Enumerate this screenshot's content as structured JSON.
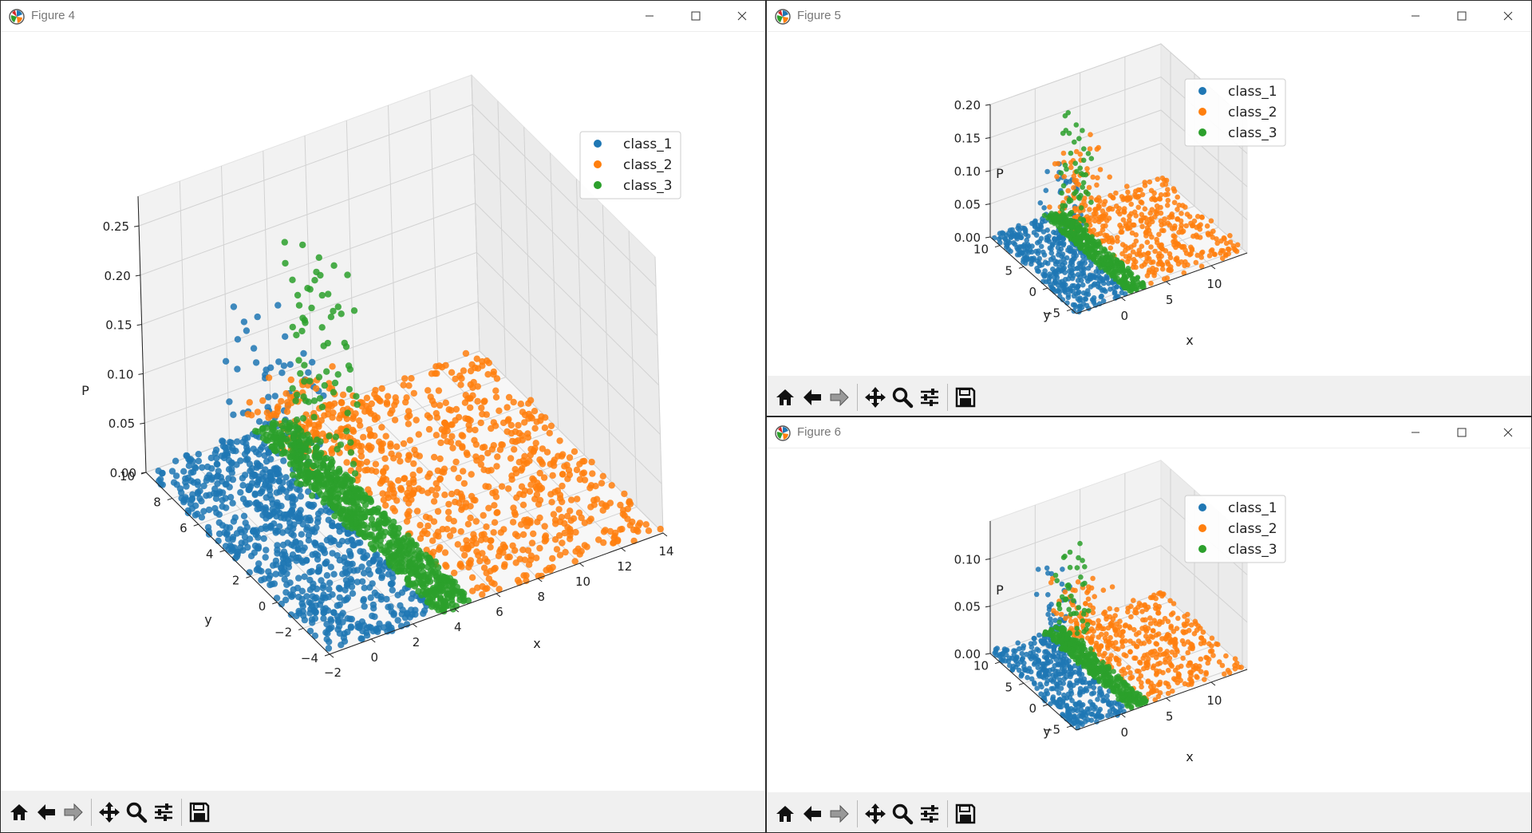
{
  "windows": [
    {
      "title": "Figure 4",
      "controls": {
        "minimize": "minimize-icon",
        "maximize": "maximize-icon",
        "close": "close-icon"
      },
      "toolbar": [
        "home-icon",
        "back-arrow-icon",
        "forward-arrow-icon",
        "pan-icon",
        "zoom-icon",
        "configure-subplots-icon",
        "save-icon"
      ]
    },
    {
      "title": "Figure 5",
      "controls": {
        "minimize": "minimize-icon",
        "maximize": "maximize-icon",
        "close": "close-icon"
      },
      "toolbar": [
        "home-icon",
        "back-arrow-icon",
        "forward-arrow-icon",
        "pan-icon",
        "zoom-icon",
        "configure-subplots-icon",
        "save-icon"
      ]
    },
    {
      "title": "Figure 6",
      "controls": {
        "minimize": "minimize-icon",
        "maximize": "maximize-icon",
        "close": "close-icon"
      },
      "toolbar": [
        "home-icon",
        "back-arrow-icon",
        "forward-arrow-icon",
        "pan-icon",
        "zoom-icon",
        "configure-subplots-icon",
        "save-icon"
      ]
    }
  ],
  "chart_data": [
    {
      "type": "scatter",
      "projection": "3d",
      "xlabel": "x",
      "ylabel": "y",
      "zlabel": "P",
      "xlim": [
        -2,
        14
      ],
      "ylim": [
        -4,
        10
      ],
      "zlim": [
        0,
        0.28
      ],
      "xticks": [
        -2,
        0,
        2,
        4,
        6,
        8,
        10,
        12,
        14
      ],
      "yticks": [
        -4,
        -2,
        0,
        2,
        4,
        6,
        8,
        10
      ],
      "zticks": [
        0.0,
        0.05,
        0.1,
        0.15,
        0.2,
        0.25
      ],
      "xtick_labels": [
        "−2",
        "0",
        "2",
        "4",
        "6",
        "8",
        "10",
        "12",
        "14"
      ],
      "ytick_labels": [
        "−4",
        "−2",
        "0",
        "2",
        "4",
        "6",
        "8",
        "10"
      ],
      "ztick_labels": [
        "0.00",
        "0.05",
        "0.10",
        "0.15",
        "0.20",
        "0.25"
      ],
      "legend_position": "upper right",
      "grid": true,
      "series": [
        {
          "name": "class_1",
          "color": "#1f77b4",
          "x_range": [
            -2,
            3.2
          ],
          "y_range": [
            -4,
            10
          ],
          "peak_xy": [
            1.2,
            5
          ],
          "peak_p": 0.19
        },
        {
          "name": "class_2",
          "color": "#ff7f0e",
          "x_range": [
            4.9,
            14
          ],
          "y_range": [
            -4,
            10
          ],
          "peak_xy": [
            5.5,
            9
          ],
          "peak_p": 0.03
        },
        {
          "name": "class_3",
          "color": "#2ca02c",
          "x_range": [
            3.2,
            4.9
          ],
          "y_range": [
            -4,
            10
          ],
          "peak_xy": [
            3.2,
            4.5
          ],
          "peak_p": 0.26
        }
      ]
    },
    {
      "type": "scatter",
      "projection": "3d",
      "xlabel": "x",
      "ylabel": "y",
      "zlabel": "P",
      "xlim": [
        -5,
        14
      ],
      "ylim": [
        -6,
        12
      ],
      "zlim": [
        0,
        0.2
      ],
      "xticks": [
        0,
        5,
        10
      ],
      "yticks": [
        -5,
        0,
        5,
        10
      ],
      "zticks": [
        0.0,
        0.05,
        0.1,
        0.15,
        0.2
      ],
      "xtick_labels": [
        "0",
        "5",
        "10"
      ],
      "ytick_labels": [
        "−5",
        "0",
        "5",
        "10"
      ],
      "ztick_labels": [
        "0.00",
        "0.05",
        "0.10",
        "0.15",
        "0.20"
      ],
      "legend_position": "upper right",
      "grid": true,
      "series": [
        {
          "name": "class_1",
          "color": "#1f77b4",
          "x_range": [
            -5,
            1
          ],
          "y_range": [
            -6,
            12
          ],
          "peak_xy": [
            -1,
            5
          ],
          "peak_p": 0.13
        },
        {
          "name": "class_2",
          "color": "#ff7f0e",
          "x_range": [
            3,
            14
          ],
          "y_range": [
            -6,
            12
          ],
          "peak_xy": [
            4,
            10
          ],
          "peak_p": 0.1
        },
        {
          "name": "class_3",
          "color": "#2ca02c",
          "x_range": [
            1,
            3
          ],
          "y_range": [
            -6,
            12
          ],
          "peak_xy": [
            1.5,
            6
          ],
          "peak_p": 0.18
        }
      ]
    },
    {
      "type": "scatter",
      "projection": "3d",
      "xlabel": "x",
      "ylabel": "y",
      "zlabel": "P",
      "xlim": [
        -5,
        14
      ],
      "ylim": [
        -6,
        12
      ],
      "zlim": [
        0,
        0.14
      ],
      "xticks": [
        0,
        5,
        10
      ],
      "yticks": [
        -5,
        0,
        5,
        10
      ],
      "zticks": [
        0.0,
        0.05,
        0.1
      ],
      "xtick_labels": [
        "0",
        "5",
        "10"
      ],
      "ytick_labels": [
        "−5",
        "0",
        "5",
        "10"
      ],
      "ztick_labels": [
        "0.00",
        "0.05",
        "0.10"
      ],
      "legend_position": "upper right",
      "grid": true,
      "series": [
        {
          "name": "class_1",
          "color": "#1f77b4",
          "x_range": [
            -5,
            1
          ],
          "y_range": [
            -6,
            12
          ],
          "peak_xy": [
            -1,
            6
          ],
          "peak_p": 0.1
        },
        {
          "name": "class_2",
          "color": "#ff7f0e",
          "x_range": [
            3,
            14
          ],
          "y_range": [
            -6,
            12
          ],
          "peak_xy": [
            4,
            9
          ],
          "peak_p": 0.06
        },
        {
          "name": "class_3",
          "color": "#2ca02c",
          "x_range": [
            1,
            3
          ],
          "y_range": [
            -6,
            12
          ],
          "peak_xy": [
            1.5,
            7
          ],
          "peak_p": 0.12
        }
      ]
    }
  ]
}
